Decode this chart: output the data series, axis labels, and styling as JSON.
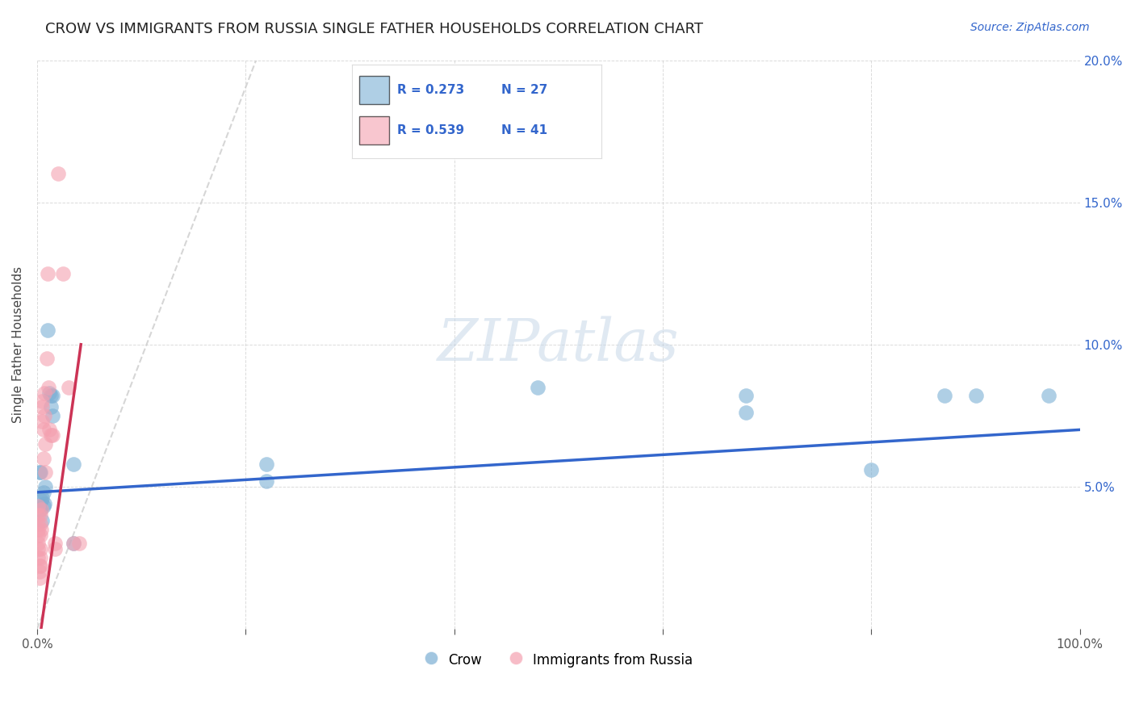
{
  "title": "CROW VS IMMIGRANTS FROM RUSSIA SINGLE FATHER HOUSEHOLDS CORRELATION CHART",
  "source": "Source: ZipAtlas.com",
  "ylabel": "Single Father Households",
  "xlim": [
    0,
    1.0
  ],
  "ylim": [
    0,
    0.2
  ],
  "background_color": "#ffffff",
  "grid_color": "#cccccc",
  "watermark_text": "ZIPatlas",
  "crow_color": "#7bafd4",
  "russia_color": "#f4a0b0",
  "crow_trendline_color": "#3366cc",
  "russia_trendline_color": "#cc3355",
  "diagonal_color": "#cccccc",
  "legend_r_crow": "R = 0.273",
  "legend_n_crow": "N = 27",
  "legend_r_russia": "R = 0.539",
  "legend_n_russia": "N = 41",
  "crow_points": [
    [
      0.002,
      0.055
    ],
    [
      0.003,
      0.042
    ],
    [
      0.003,
      0.055
    ],
    [
      0.004,
      0.045
    ],
    [
      0.005,
      0.046
    ],
    [
      0.005,
      0.038
    ],
    [
      0.006,
      0.048
    ],
    [
      0.006,
      0.043
    ],
    [
      0.007,
      0.044
    ],
    [
      0.008,
      0.05
    ],
    [
      0.01,
      0.105
    ],
    [
      0.012,
      0.083
    ],
    [
      0.013,
      0.082
    ],
    [
      0.013,
      0.078
    ],
    [
      0.015,
      0.082
    ],
    [
      0.015,
      0.075
    ],
    [
      0.035,
      0.058
    ],
    [
      0.035,
      0.03
    ],
    [
      0.22,
      0.058
    ],
    [
      0.22,
      0.052
    ],
    [
      0.48,
      0.085
    ],
    [
      0.68,
      0.082
    ],
    [
      0.68,
      0.076
    ],
    [
      0.8,
      0.056
    ],
    [
      0.87,
      0.082
    ],
    [
      0.9,
      0.082
    ],
    [
      0.97,
      0.082
    ]
  ],
  "russia_points": [
    [
      0.001,
      0.043
    ],
    [
      0.001,
      0.04
    ],
    [
      0.001,
      0.037
    ],
    [
      0.001,
      0.035
    ],
    [
      0.001,
      0.033
    ],
    [
      0.001,
      0.03
    ],
    [
      0.001,
      0.028
    ],
    [
      0.001,
      0.025
    ],
    [
      0.002,
      0.022
    ],
    [
      0.002,
      0.02
    ],
    [
      0.002,
      0.018
    ],
    [
      0.003,
      0.04
    ],
    [
      0.003,
      0.037
    ],
    [
      0.003,
      0.033
    ],
    [
      0.003,
      0.028
    ],
    [
      0.003,
      0.025
    ],
    [
      0.003,
      0.022
    ],
    [
      0.004,
      0.042
    ],
    [
      0.004,
      0.035
    ],
    [
      0.005,
      0.08
    ],
    [
      0.005,
      0.078
    ],
    [
      0.005,
      0.073
    ],
    [
      0.006,
      0.07
    ],
    [
      0.006,
      0.06
    ],
    [
      0.007,
      0.083
    ],
    [
      0.007,
      0.075
    ],
    [
      0.008,
      0.065
    ],
    [
      0.008,
      0.055
    ],
    [
      0.009,
      0.095
    ],
    [
      0.01,
      0.125
    ],
    [
      0.011,
      0.085
    ],
    [
      0.012,
      0.07
    ],
    [
      0.013,
      0.068
    ],
    [
      0.015,
      0.068
    ],
    [
      0.017,
      0.03
    ],
    [
      0.017,
      0.028
    ],
    [
      0.02,
      0.16
    ],
    [
      0.025,
      0.125
    ],
    [
      0.03,
      0.085
    ],
    [
      0.035,
      0.03
    ],
    [
      0.04,
      0.03
    ]
  ]
}
